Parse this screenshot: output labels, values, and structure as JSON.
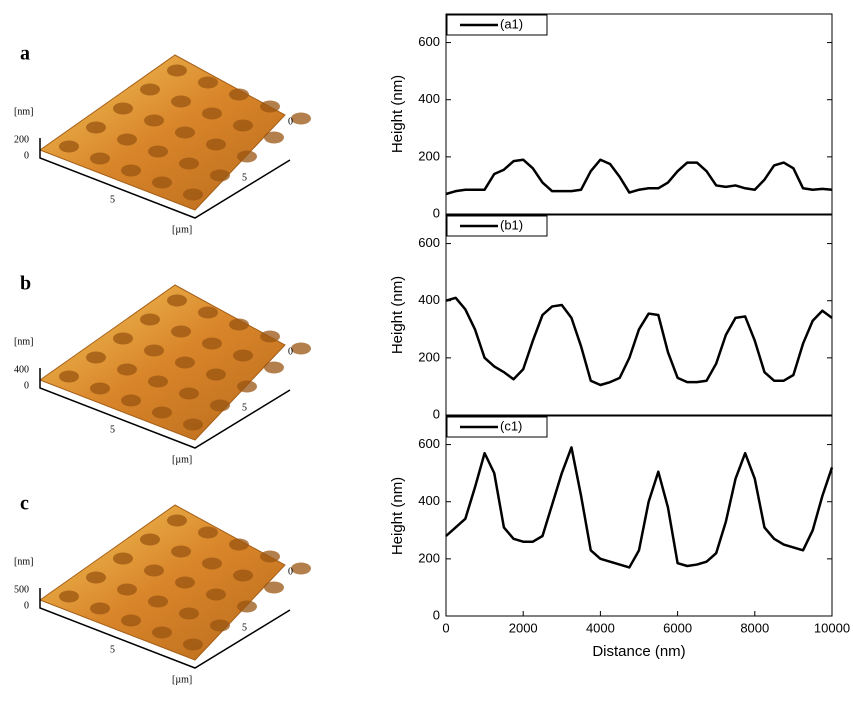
{
  "afm_panels": [
    {
      "label": "a",
      "z_unit": "[nm]",
      "z_ticks": [
        "200",
        "0"
      ],
      "y_ticks": [
        "0",
        "5"
      ],
      "x_ticks": [
        "5"
      ],
      "xy_unit": "[µm]"
    },
    {
      "label": "b",
      "z_unit": "[nm]",
      "z_ticks": [
        "400",
        "0"
      ],
      "y_ticks": [
        "0",
        "5"
      ],
      "x_ticks": [
        "5"
      ],
      "xy_unit": "[µm]"
    },
    {
      "label": "c",
      "z_unit": "[nm]",
      "z_ticks": [
        "500",
        "0"
      ],
      "y_ticks": [
        "0",
        "5"
      ],
      "x_ticks": [
        "5"
      ],
      "xy_unit": "[µm]"
    }
  ],
  "chart_data": [
    {
      "type": "line",
      "ylabel": "Height (nm)",
      "ylim": [
        0,
        700
      ],
      "yticks": [
        0,
        200,
        400,
        600
      ],
      "xlim": [
        0,
        10000
      ],
      "x": [
        0,
        250,
        500,
        750,
        1000,
        1250,
        1500,
        1750,
        2000,
        2250,
        2500,
        2750,
        3000,
        3250,
        3500,
        3750,
        4000,
        4250,
        4500,
        4750,
        5000,
        5250,
        5500,
        5750,
        6000,
        6250,
        6500,
        6750,
        7000,
        7250,
        7500,
        7750,
        8000,
        8250,
        8500,
        8750,
        9000,
        9250,
        9500,
        9750,
        10000
      ],
      "series": [
        {
          "name": "(a1)",
          "color": "#000000",
          "values": [
            70,
            80,
            85,
            85,
            85,
            140,
            155,
            185,
            190,
            160,
            110,
            80,
            80,
            80,
            85,
            150,
            190,
            175,
            130,
            75,
            85,
            90,
            90,
            110,
            150,
            180,
            180,
            150,
            100,
            95,
            100,
            90,
            85,
            120,
            170,
            180,
            160,
            90,
            85,
            88,
            85
          ]
        }
      ]
    },
    {
      "type": "line",
      "ylabel": "Height (nm)",
      "ylim": [
        0,
        700
      ],
      "yticks": [
        0,
        200,
        400,
        600
      ],
      "xlim": [
        0,
        10000
      ],
      "x": [
        0,
        250,
        500,
        750,
        1000,
        1250,
        1500,
        1750,
        2000,
        2250,
        2500,
        2750,
        3000,
        3250,
        3500,
        3750,
        4000,
        4250,
        4500,
        4750,
        5000,
        5250,
        5500,
        5750,
        6000,
        6250,
        6500,
        6750,
        7000,
        7250,
        7500,
        7750,
        8000,
        8250,
        8500,
        8750,
        9000,
        9250,
        9500,
        9750,
        10000
      ],
      "series": [
        {
          "name": "(b1)",
          "color": "#000000",
          "values": [
            400,
            410,
            370,
            300,
            200,
            170,
            150,
            125,
            160,
            260,
            350,
            380,
            385,
            340,
            240,
            120,
            105,
            115,
            130,
            200,
            300,
            355,
            350,
            220,
            130,
            115,
            115,
            120,
            180,
            280,
            340,
            345,
            260,
            150,
            120,
            120,
            140,
            250,
            330,
            365,
            340
          ]
        }
      ]
    },
    {
      "type": "line",
      "ylabel": "Height (nm)",
      "xlabel": "Distance (nm)",
      "ylim": [
        0,
        700
      ],
      "yticks": [
        0,
        200,
        400,
        600
      ],
      "xlim": [
        0,
        10000
      ],
      "xticks": [
        0,
        2000,
        4000,
        6000,
        8000,
        10000
      ],
      "x": [
        0,
        250,
        500,
        750,
        1000,
        1250,
        1500,
        1750,
        2000,
        2250,
        2500,
        2750,
        3000,
        3250,
        3500,
        3750,
        4000,
        4250,
        4500,
        4750,
        5000,
        5250,
        5500,
        5750,
        6000,
        6250,
        6500,
        6750,
        7000,
        7250,
        7500,
        7750,
        8000,
        8250,
        8500,
        8750,
        9000,
        9250,
        9500,
        9750,
        10000
      ],
      "series": [
        {
          "name": "(c1)",
          "color": "#000000",
          "values": [
            280,
            310,
            340,
            450,
            570,
            500,
            310,
            270,
            260,
            260,
            280,
            390,
            500,
            590,
            420,
            230,
            200,
            190,
            180,
            170,
            230,
            400,
            505,
            380,
            185,
            175,
            180,
            190,
            220,
            330,
            480,
            570,
            480,
            310,
            270,
            250,
            240,
            230,
            300,
            420,
            520
          ]
        }
      ]
    }
  ]
}
